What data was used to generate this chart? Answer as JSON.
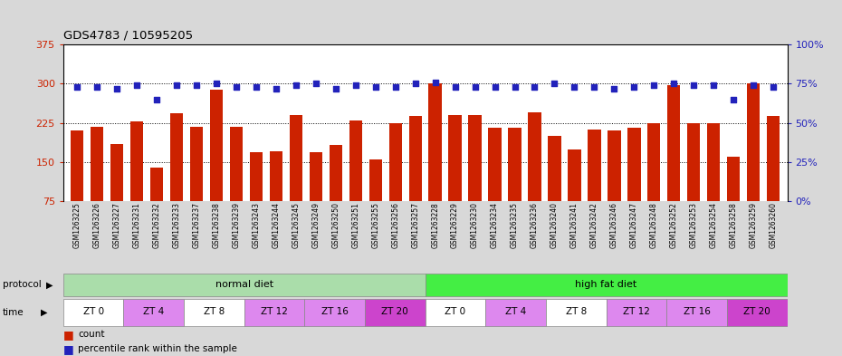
{
  "title": "GDS4783 / 10595205",
  "samples": [
    "GSM1263225",
    "GSM1263226",
    "GSM1263227",
    "GSM1263231",
    "GSM1263232",
    "GSM1263233",
    "GSM1263237",
    "GSM1263238",
    "GSM1263239",
    "GSM1263243",
    "GSM1263244",
    "GSM1263245",
    "GSM1263249",
    "GSM1263250",
    "GSM1263251",
    "GSM1263255",
    "GSM1263256",
    "GSM1263257",
    "GSM1263228",
    "GSM1263229",
    "GSM1263230",
    "GSM1263234",
    "GSM1263235",
    "GSM1263236",
    "GSM1263240",
    "GSM1263241",
    "GSM1263242",
    "GSM1263246",
    "GSM1263247",
    "GSM1263248",
    "GSM1263252",
    "GSM1263253",
    "GSM1263254",
    "GSM1263258",
    "GSM1263259",
    "GSM1263260"
  ],
  "bar_values": [
    210,
    218,
    185,
    228,
    140,
    243,
    218,
    288,
    218,
    168,
    170,
    240,
    168,
    182,
    230,
    155,
    224,
    238,
    300,
    240,
    240,
    215,
    215,
    245,
    200,
    174,
    212,
    210,
    215,
    225,
    298,
    224,
    225,
    160,
    300,
    238
  ],
  "blue_dot_values": [
    73,
    73,
    72,
    74,
    65,
    74,
    74,
    75,
    73,
    73,
    72,
    74,
    75,
    72,
    74,
    73,
    73,
    75,
    76,
    73,
    73,
    73,
    73,
    73,
    75,
    73,
    73,
    72,
    73,
    74,
    75,
    74,
    74,
    65,
    74,
    73
  ],
  "bar_color": "#cc2200",
  "dot_color": "#2222bb",
  "ylim_left": [
    75,
    375
  ],
  "ylim_right": [
    0,
    100
  ],
  "yticks_left": [
    75,
    150,
    225,
    300,
    375
  ],
  "yticks_right": [
    0,
    25,
    50,
    75,
    100
  ],
  "protocol_normal": "normal diet",
  "protocol_high": "high fat diet",
  "protocol_color_normal": "#aaddaa",
  "protocol_color_high": "#44ee44",
  "time_labels": [
    "ZT 0",
    "ZT 4",
    "ZT 8",
    "ZT 12",
    "ZT 16",
    "ZT 20"
  ],
  "time_color_0": "#ffffff",
  "time_color_4": "#dd88ee",
  "time_color_8": "#ffffff",
  "time_color_12": "#dd88ee",
  "time_color_16": "#dd88ee",
  "time_color_20": "#cc44cc",
  "fig_bg": "#d8d8d8",
  "chart_bg": "#ffffff"
}
